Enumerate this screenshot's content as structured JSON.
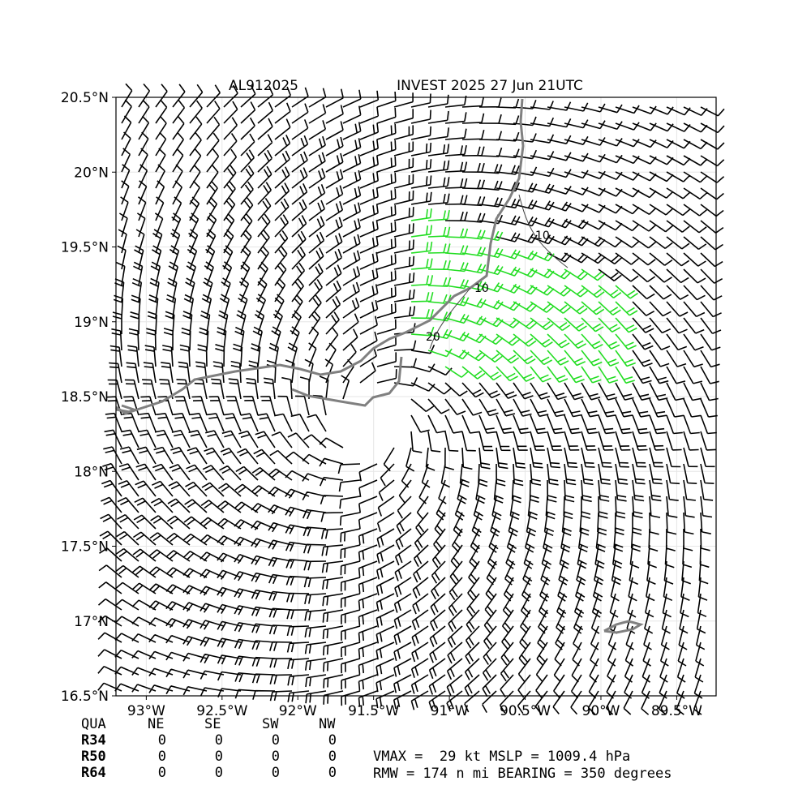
{
  "header": {
    "title_left": "AL912025",
    "title_right": "INVEST 2025 27 Jun 21UTC"
  },
  "map": {
    "xlim": [
      -93.2,
      -89.24
    ],
    "ylim": [
      16.5,
      20.5
    ],
    "xticks": [
      {
        "value": -93,
        "label": "93°W"
      },
      {
        "value": -92.5,
        "label": "92.5°W"
      },
      {
        "value": -92,
        "label": "92°W"
      },
      {
        "value": -91.5,
        "label": "91.5°W"
      },
      {
        "value": -91,
        "label": "91°W"
      },
      {
        "value": -90.5,
        "label": "90.5°W"
      },
      {
        "value": -90,
        "label": "90°W"
      },
      {
        "value": -89.5,
        "label": "89.5°W"
      }
    ],
    "yticks": [
      {
        "value": 16.5,
        "label": "16.5°N"
      },
      {
        "value": 17,
        "label": "17°N"
      },
      {
        "value": 17.5,
        "label": "17.5°N"
      },
      {
        "value": 18,
        "label": "18°N"
      },
      {
        "value": 18.5,
        "label": "18.5°N"
      },
      {
        "value": 19,
        "label": "19°N"
      },
      {
        "value": 19.5,
        "label": "19.5°N"
      },
      {
        "value": 20,
        "label": "20°N"
      },
      {
        "value": 20.5,
        "label": "20.5°N"
      }
    ],
    "contour_labels": [
      "10",
      "10",
      "20"
    ]
  },
  "table": {
    "header": [
      "QUA",
      "NE",
      "SE",
      "SW",
      "NW"
    ],
    "rows": [
      [
        "R34",
        "0",
        "0",
        "0",
        "0"
      ],
      [
        "R50",
        "0",
        "0",
        "0",
        "0"
      ],
      [
        "R64",
        "0",
        "0",
        "0",
        "0"
      ]
    ]
  },
  "stats": [
    "VMAX =  29 kt MSLP = 1009.4 hPa",
    "RMW = 174 n mi BEARING = 350 degrees"
  ]
}
